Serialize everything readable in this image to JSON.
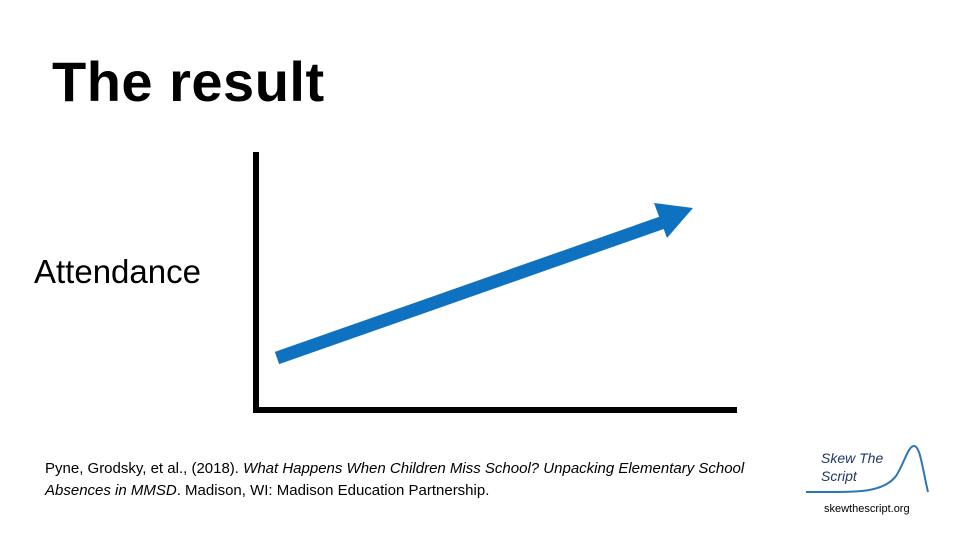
{
  "slide": {
    "title": "The result"
  },
  "diagram": {
    "y_axis_label": "Attendance",
    "trend": "increasing",
    "arrow_color": "#0f72c0",
    "axis_color": "#000000"
  },
  "citation": {
    "authors": "Pyne, Grodsky, et al., (2018). ",
    "title_italic": "What Happens When Children Miss School? Unpacking Elementary School Absences in MMSD",
    "publisher": ". Madison, WI: Madison Education Partnership."
  },
  "logo": {
    "name": "Skew The Script",
    "url": "skewthescript.org",
    "curve_color": "#2e75b6"
  }
}
